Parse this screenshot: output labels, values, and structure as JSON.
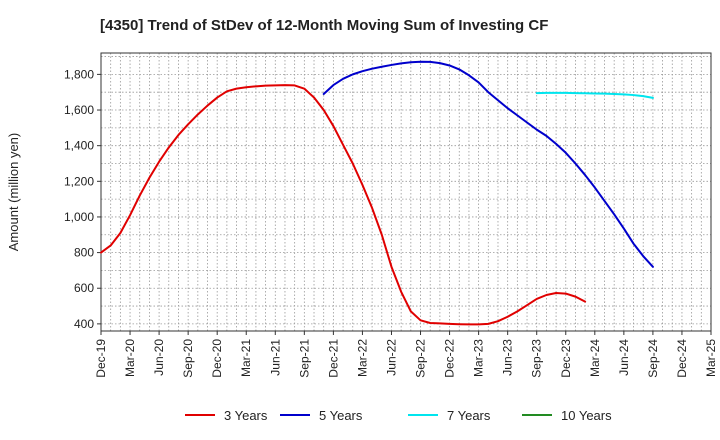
{
  "chart_data": {
    "type": "line",
    "title": "[4350]  Trend of StDev of 12-Month Moving Sum of Investing CF",
    "ylabel": "Amount (million yen)",
    "xlabel": "",
    "ylim": [
      360,
      1920
    ],
    "yticks": [
      400,
      600,
      800,
      1000,
      1200,
      1400,
      1600,
      1800
    ],
    "ytick_labels": [
      "400",
      "600",
      "800",
      "1,000",
      "1,200",
      "1,400",
      "1,600",
      "1,800"
    ],
    "x_start": "Dec-19",
    "x_end": "Mar-25",
    "xtick_labels": [
      "Dec-19",
      "Mar-20",
      "Jun-20",
      "Sep-20",
      "Dec-20",
      "Mar-21",
      "Jun-21",
      "Sep-21",
      "Dec-21",
      "Mar-22",
      "Jun-22",
      "Sep-22",
      "Dec-22",
      "Mar-23",
      "Jun-23",
      "Sep-23",
      "Dec-23",
      "Mar-24",
      "Jun-24",
      "Sep-24",
      "Dec-24",
      "Mar-25"
    ],
    "grid": true,
    "legend_position": "bottom",
    "series": [
      {
        "name": "3 Years",
        "color": "#e00000",
        "start": "Dec-19",
        "values": [
          800,
          840,
          910,
          1010,
          1120,
          1220,
          1310,
          1390,
          1460,
          1520,
          1575,
          1625,
          1670,
          1705,
          1720,
          1728,
          1733,
          1737,
          1738,
          1740,
          1738,
          1720,
          1670,
          1600,
          1510,
          1405,
          1300,
          1180,
          1050,
          900,
          720,
          580,
          470,
          420,
          405,
          403,
          400,
          398,
          397,
          397,
          400,
          415,
          440,
          470,
          505,
          540,
          562,
          573,
          570,
          553,
          525
        ]
      },
      {
        "name": "5 Years",
        "color": "#0000cc",
        "start": "Nov-21",
        "values": [
          1690,
          1740,
          1775,
          1800,
          1818,
          1832,
          1843,
          1853,
          1862,
          1868,
          1871,
          1870,
          1863,
          1850,
          1828,
          1795,
          1755,
          1700,
          1655,
          1610,
          1570,
          1530,
          1490,
          1455,
          1410,
          1360,
          1300,
          1235,
          1165,
          1090,
          1015,
          935,
          850,
          780,
          720
        ]
      },
      {
        "name": "7 Years",
        "color": "#00e5ee",
        "start": "Sep-23",
        "values": [
          1695,
          1696,
          1696,
          1696,
          1695,
          1694,
          1693,
          1692,
          1690,
          1688,
          1684,
          1678,
          1668
        ]
      },
      {
        "name": "10 Years",
        "color": "#228b22",
        "start": "Sep-24",
        "values": []
      }
    ]
  }
}
